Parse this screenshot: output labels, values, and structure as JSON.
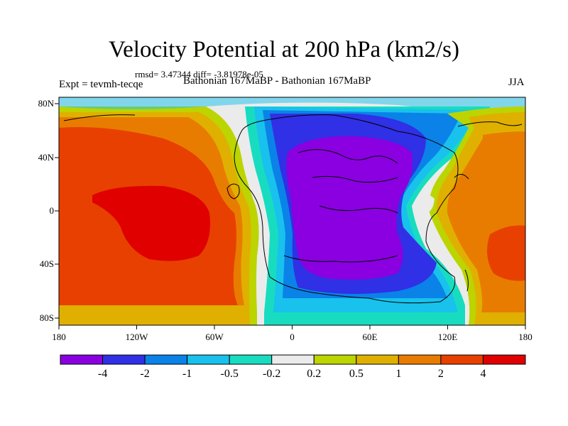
{
  "figure": {
    "title": "Velocity Potential at 200 hPa (km2/s)",
    "stats_line": "rmsd= 3.47344 diff= -3.81978e-05",
    "left_label": "Expt = tevmh-tecqe",
    "center_label": "Bathonian 167MaBP - Bathonian 167MaBP",
    "right_label": "JJA"
  },
  "chart_data": {
    "type": "heatmap",
    "title": "Velocity Potential at 200 hPa (km2/s)",
    "xlabel": "",
    "ylabel": "",
    "x_ticks": [
      "180",
      "120W",
      "60W",
      "0",
      "60E",
      "120E",
      "180"
    ],
    "y_ticks": [
      "80N",
      "40N",
      "0",
      "40S",
      "80S"
    ],
    "xlim": [
      -180,
      180
    ],
    "ylim": [
      -90,
      90
    ],
    "colorbar": {
      "levels": [
        -4,
        -2,
        -1,
        -0.5,
        -0.2,
        0.2,
        0.5,
        1,
        2,
        4
      ],
      "labels": [
        "-4",
        "-2",
        "-1",
        "-0.5",
        "-0.2",
        "0.2",
        "0.5",
        "1",
        "2",
        "4"
      ],
      "colors": [
        "#8a00e0",
        "#3030e6",
        "#0a82e8",
        "#18c2ec",
        "#18dcc0",
        "#ebebeb",
        "#bcd400",
        "#e0b000",
        "#e87c00",
        "#e84000",
        "#e00000"
      ]
    },
    "field_regions": [
      {
        "name": "pacific-positive-center",
        "value": 3,
        "color": "#e84000"
      },
      {
        "name": "pacific-positive-core",
        "value": 4.5,
        "color": "#e00000"
      },
      {
        "name": "africa-negative-center",
        "value": -3,
        "color": "#3030e6"
      },
      {
        "name": "africa-negative-core",
        "value": -4.5,
        "color": "#8a00e0"
      },
      {
        "name": "east-positive-lobe",
        "value": 2,
        "color": "#e87c00"
      }
    ]
  }
}
